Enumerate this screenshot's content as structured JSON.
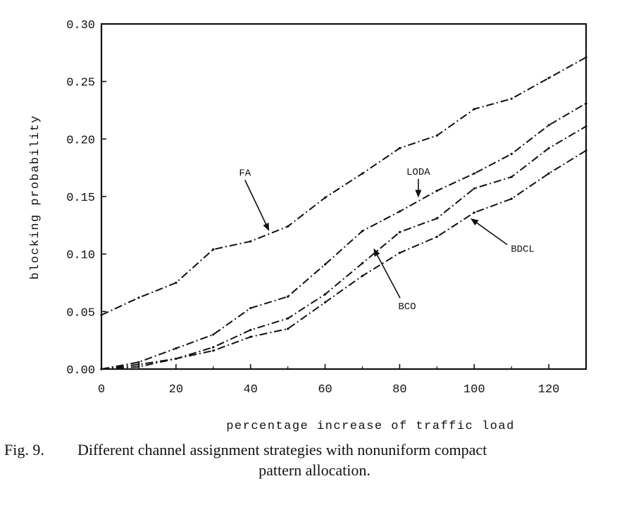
{
  "chart_data": {
    "type": "line",
    "title": "",
    "xlabel": "percentage increase of traffic load",
    "ylabel": "blocking probability",
    "xlim": [
      0,
      130
    ],
    "ylim": [
      0,
      0.3
    ],
    "grid": false,
    "x_ticks": [
      0,
      20,
      40,
      60,
      80,
      100,
      120
    ],
    "x_tick_labels": [
      "0",
      "20",
      "40",
      "60",
      "80",
      "100",
      "120"
    ],
    "y_ticks": [
      0,
      0.05,
      0.1,
      0.15,
      0.2,
      0.25,
      0.3
    ],
    "y_tick_labels": [
      "0.00",
      "0.05",
      "0.10",
      "0.15",
      "0.20",
      "0.25",
      "0.30"
    ],
    "x": [
      0,
      10,
      20,
      30,
      40,
      50,
      60,
      70,
      80,
      90,
      100,
      110,
      120,
      130
    ],
    "series": [
      {
        "name": "FA",
        "values": [
          0.047,
          0.062,
          0.075,
          0.104,
          0.111,
          0.124,
          0.149,
          0.17,
          0.192,
          0.203,
          0.226,
          0.235,
          0.253,
          0.271
        ]
      },
      {
        "name": "LODA",
        "values": [
          0.0,
          0.006,
          0.018,
          0.03,
          0.053,
          0.063,
          0.091,
          0.12,
          0.137,
          0.155,
          0.17,
          0.187,
          0.212,
          0.231
        ]
      },
      {
        "name": "BCO",
        "values": [
          0.0,
          0.004,
          0.009,
          0.019,
          0.034,
          0.044,
          0.065,
          0.092,
          0.119,
          0.131,
          0.157,
          0.167,
          0.192,
          0.211
        ]
      },
      {
        "name": "BDCL",
        "values": [
          0.0,
          0.002,
          0.009,
          0.016,
          0.028,
          0.035,
          0.058,
          0.081,
          0.101,
          0.115,
          0.136,
          0.148,
          0.17,
          0.19
        ]
      }
    ],
    "annotations": [
      {
        "text": "FA",
        "x": 38.5,
        "y": 0.168,
        "arrow_to": [
          45,
          0.12
        ]
      },
      {
        "text": "LODA",
        "x": 85,
        "y": 0.169,
        "arrow_to": [
          85,
          0.149
        ]
      },
      {
        "text": "BCO",
        "x": 82,
        "y": 0.052,
        "arrow_to": [
          73,
          0.105
        ]
      },
      {
        "text": "BDCL",
        "x": 113,
        "y": 0.102,
        "arrow_to": [
          99,
          0.131
        ]
      }
    ]
  },
  "caption": {
    "figure_number": "Fig. 9.",
    "line1": "Different channel assignment strategies with nonuniform compact",
    "line2": "pattern allocation."
  }
}
